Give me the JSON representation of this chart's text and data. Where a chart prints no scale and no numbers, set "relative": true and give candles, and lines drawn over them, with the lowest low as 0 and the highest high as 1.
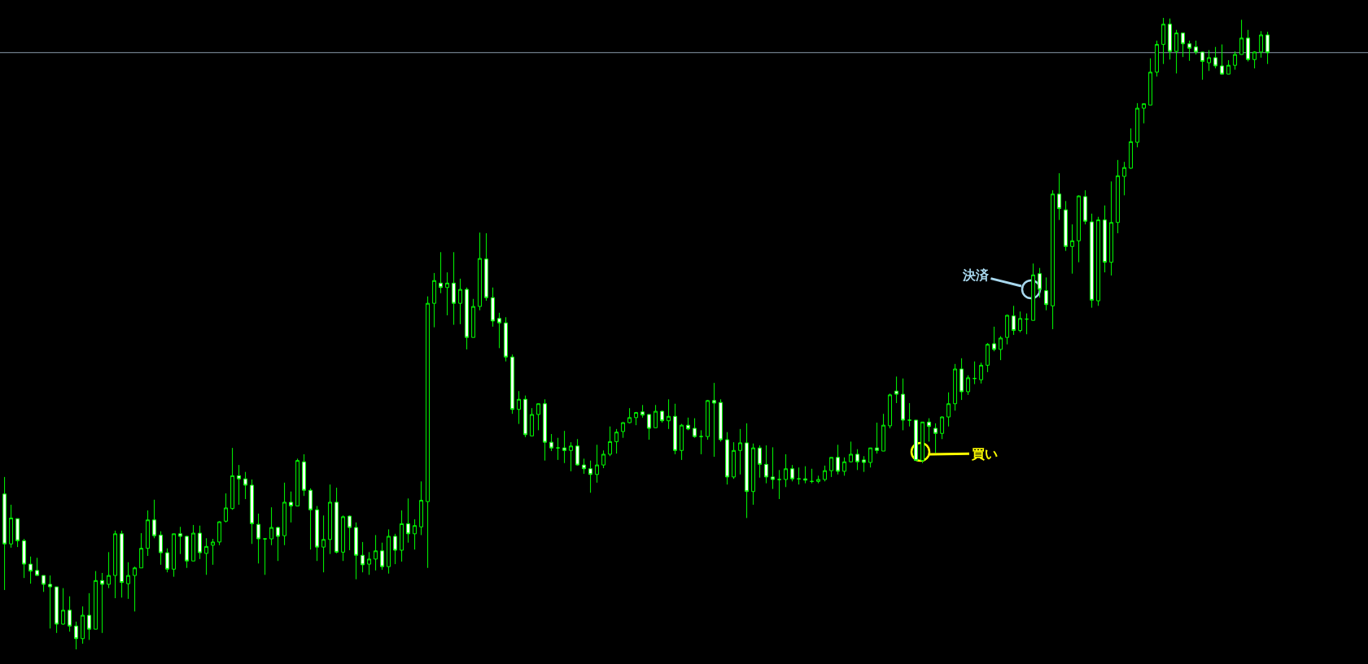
{
  "chart_data": {
    "type": "candlestick",
    "relative": true,
    "color": "#00ff00",
    "categories": [
      null,
      null,
      null,
      null,
      null,
      null,
      null,
      null,
      null,
      null,
      null,
      null,
      null,
      null,
      null,
      null,
      null,
      null,
      null,
      null,
      null,
      null,
      null,
      null,
      null,
      null,
      null,
      null,
      null,
      null,
      null,
      null,
      null,
      null,
      null,
      null,
      null,
      null,
      null,
      null,
      null,
      null,
      null,
      null,
      null,
      null,
      null,
      null,
      null,
      null,
      null,
      null,
      null,
      null,
      null,
      null,
      null,
      null,
      null,
      null,
      null,
      null,
      null,
      null,
      null,
      null,
      null,
      null,
      null,
      null,
      null,
      null,
      null,
      null,
      null,
      null,
      null,
      null,
      null,
      null,
      null,
      null,
      null,
      null,
      null,
      null,
      null,
      null,
      null,
      null,
      null,
      null,
      null,
      null,
      null,
      null,
      null,
      null,
      null,
      null,
      null,
      null,
      null,
      null,
      null,
      null,
      null,
      null,
      null,
      null,
      null,
      null,
      null,
      null,
      null,
      null,
      null,
      null,
      null,
      null,
      null,
      null,
      null,
      null,
      null,
      null,
      null,
      null,
      null,
      null,
      null,
      null,
      null,
      null,
      null,
      null,
      null,
      null,
      null,
      null,
      null,
      null,
      null,
      null,
      null,
      null,
      null,
      null,
      null,
      null,
      null,
      null,
      null,
      null,
      null,
      null,
      null,
      null,
      null,
      null,
      null,
      null,
      null,
      null,
      null,
      null,
      null,
      null,
      null,
      null,
      null,
      null,
      null,
      null,
      null,
      null,
      null,
      null,
      null,
      null,
      null,
      null,
      null,
      null,
      null,
      null,
      null,
      null,
      null,
      null,
      null,
      null,
      null,
      null,
      null
    ],
    "ohlc": [
      [
        0.246,
        0.273,
        0.094,
        0.167
      ],
      [
        0.167,
        0.229,
        0.161,
        0.208
      ],
      [
        0.207,
        0.207,
        0.162,
        0.172
      ],
      [
        0.172,
        0.175,
        0.113,
        0.135
      ],
      [
        0.135,
        0.147,
        0.104,
        0.124
      ],
      [
        0.125,
        0.145,
        0.117,
        0.117
      ],
      [
        0.117,
        0.117,
        0.091,
        0.103
      ],
      [
        0.103,
        0.117,
        0.033,
        0.099
      ],
      [
        0.099,
        0.099,
        0.026,
        0.04
      ],
      [
        0.04,
        0.097,
        0.039,
        0.062
      ],
      [
        0.062,
        0.084,
        0.028,
        0.037
      ],
      [
        0.037,
        0.044,
        0,
        0.017
      ],
      [
        0.017,
        0.068,
        0.009,
        0.054
      ],
      [
        0.054,
        0.089,
        0.015,
        0.032
      ],
      [
        0.032,
        0.124,
        0.032,
        0.109
      ],
      [
        0.109,
        0.121,
        0.026,
        0.103
      ],
      [
        0.103,
        0.154,
        0.097,
        0.117
      ],
      [
        0.117,
        0.188,
        0.081,
        0.183
      ],
      [
        0.183,
        0.188,
        0.082,
        0.106
      ],
      [
        0.104,
        0.138,
        0.08,
        0.117
      ],
      [
        0.117,
        0.131,
        0.06,
        0.129
      ],
      [
        0.129,
        0.184,
        0.129,
        0.16
      ],
      [
        0.16,
        0.22,
        0.148,
        0.205
      ],
      [
        0.205,
        0.237,
        0.176,
        0.18
      ],
      [
        0.181,
        0.187,
        0.134,
        0.153
      ],
      [
        0.153,
        0.16,
        0.122,
        0.127
      ],
      [
        0.127,
        0.183,
        0.115,
        0.183
      ],
      [
        0.183,
        0.194,
        0.151,
        0.179
      ],
      [
        0.179,
        0.18,
        0.129,
        0.14
      ],
      [
        0.14,
        0.197,
        0.14,
        0.184
      ],
      [
        0.184,
        0.196,
        0.143,
        0.153
      ],
      [
        0.152,
        0.176,
        0.118,
        0.163
      ],
      [
        0.165,
        0.175,
        0.134,
        0.17
      ],
      [
        0.17,
        0.203,
        0.165,
        0.202
      ],
      [
        0.203,
        0.247,
        0.201,
        0.224
      ],
      [
        0.223,
        0.319,
        0.221,
        0.275
      ],
      [
        0.275,
        0.292,
        0.229,
        0.27
      ],
      [
        0.27,
        0.281,
        0.238,
        0.26
      ],
      [
        0.26,
        0.269,
        0.167,
        0.199
      ],
      [
        0.198,
        0.215,
        0.136,
        0.175
      ],
      [
        0.175,
        0.175,
        0.118,
        0.175
      ],
      [
        0.175,
        0.225,
        0.165,
        0.193
      ],
      [
        0.193,
        0.194,
        0.14,
        0.179
      ],
      [
        0.18,
        0.264,
        0.165,
        0.233
      ],
      [
        0.233,
        0.25,
        0.201,
        0.227
      ],
      [
        0.227,
        0.302,
        0.227,
        0.299
      ],
      [
        0.297,
        0.309,
        0.243,
        0.252
      ],
      [
        0.252,
        0.255,
        0.158,
        0.221
      ],
      [
        0.221,
        0.227,
        0.14,
        0.162
      ],
      [
        0.162,
        0.212,
        0.122,
        0.174
      ],
      [
        0.174,
        0.261,
        0.151,
        0.233
      ],
      [
        0.233,
        0.256,
        0.152,
        0.154
      ],
      [
        0.154,
        0.212,
        0.14,
        0.21
      ],
      [
        0.211,
        0.212,
        0.157,
        0.193
      ],
      [
        0.193,
        0.201,
        0.111,
        0.149
      ],
      [
        0.149,
        0.17,
        0.122,
        0.134
      ],
      [
        0.135,
        0.154,
        0.118,
        0.143
      ],
      [
        0.143,
        0.181,
        0.125,
        0.156
      ],
      [
        0.156,
        0.169,
        0.126,
        0.131
      ],
      [
        0.131,
        0.19,
        0.12,
        0.179
      ],
      [
        0.179,
        0.183,
        0.135,
        0.157
      ],
      [
        0.157,
        0.22,
        0.139,
        0.199
      ],
      [
        0.199,
        0.239,
        0.169,
        0.183
      ],
      [
        0.183,
        0.206,
        0.158,
        0.196
      ],
      [
        0.194,
        0.266,
        0.181,
        0.236
      ],
      [
        0.234,
        0.559,
        0.129,
        0.548
      ],
      [
        0.548,
        0.596,
        0.51,
        0.584
      ],
      [
        0.58,
        0.629,
        0.564,
        0.573
      ],
      [
        0.573,
        0.597,
        0.529,
        0.58
      ],
      [
        0.58,
        0.629,
        0.514,
        0.548
      ],
      [
        0.548,
        0.587,
        0.515,
        0.57
      ],
      [
        0.57,
        0.573,
        0.475,
        0.494
      ],
      [
        0.494,
        0.555,
        0.494,
        0.543
      ],
      [
        0.543,
        0.66,
        0.537,
        0.619
      ],
      [
        0.618,
        0.659,
        0.552,
        0.557
      ],
      [
        0.557,
        0.573,
        0.511,
        0.52
      ],
      [
        0.524,
        0.533,
        0.477,
        0.517
      ],
      [
        0.517,
        0.526,
        0.456,
        0.463
      ],
      [
        0.463,
        0.467,
        0.373,
        0.38
      ],
      [
        0.38,
        0.409,
        0.357,
        0.396
      ],
      [
        0.396,
        0.402,
        0.336,
        0.34
      ],
      [
        0.338,
        0.382,
        0.338,
        0.372
      ],
      [
        0.372,
        0.389,
        0.347,
        0.389
      ],
      [
        0.389,
        0.396,
        0.299,
        0.328
      ],
      [
        0.328,
        0.341,
        0.314,
        0.319
      ],
      [
        0.319,
        0.335,
        0.3,
        0.319
      ],
      [
        0.319,
        0.346,
        0.295,
        0.315
      ],
      [
        0.315,
        0.328,
        0.282,
        0.322
      ],
      [
        0.322,
        0.333,
        0.291,
        0.292
      ],
      [
        0.292,
        0.302,
        0.278,
        0.286
      ],
      [
        0.286,
        0.299,
        0.248,
        0.277
      ],
      [
        0.277,
        0.324,
        0.264,
        0.292
      ],
      [
        0.292,
        0.315,
        0.287,
        0.309
      ],
      [
        0.309,
        0.353,
        0.306,
        0.329
      ],
      [
        0.329,
        0.349,
        0.31,
        0.344
      ],
      [
        0.345,
        0.36,
        0.335,
        0.359
      ],
      [
        0.359,
        0.382,
        0.358,
        0.367
      ],
      [
        0.367,
        0.376,
        0.355,
        0.375
      ],
      [
        0.376,
        0.387,
        0.367,
        0.371
      ],
      [
        0.372,
        0.372,
        0.332,
        0.35
      ],
      [
        0.351,
        0.387,
        0.351,
        0.377
      ],
      [
        0.377,
        0.378,
        0.359,
        0.362
      ],
      [
        0.362,
        0.396,
        0.349,
        0.369
      ],
      [
        0.369,
        0.389,
        0.309,
        0.315
      ],
      [
        0.315,
        0.357,
        0.3,
        0.355
      ],
      [
        0.355,
        0.367,
        0.347,
        0.349
      ],
      [
        0.35,
        0.366,
        0.335,
        0.337
      ],
      [
        0.337,
        0.347,
        0.309,
        0.337
      ],
      [
        0.337,
        0.395,
        0.332,
        0.394
      ],
      [
        0.394,
        0.422,
        0.305,
        0.39
      ],
      [
        0.391,
        0.396,
        0.329,
        0.332
      ],
      [
        0.332,
        0.344,
        0.261,
        0.273
      ],
      [
        0.273,
        0.328,
        0.27,
        0.315
      ],
      [
        0.315,
        0.349,
        0.277,
        0.327
      ],
      [
        0.327,
        0.358,
        0.208,
        0.25
      ],
      [
        0.25,
        0.326,
        0.229,
        0.319
      ],
      [
        0.319,
        0.323,
        0.272,
        0.293
      ],
      [
        0.293,
        0.323,
        0.263,
        0.273
      ],
      [
        0.273,
        0.32,
        0.254,
        0.269
      ],
      [
        0.269,
        0.284,
        0.238,
        0.269
      ],
      [
        0.269,
        0.309,
        0.257,
        0.286
      ],
      [
        0.286,
        0.292,
        0.266,
        0.27
      ],
      [
        0.27,
        0.288,
        0.261,
        0.27
      ],
      [
        0.27,
        0.29,
        0.263,
        0.268
      ],
      [
        0.266,
        0.286,
        0.263,
        0.266
      ],
      [
        0.266,
        0.275,
        0.263,
        0.269
      ],
      [
        0.269,
        0.291,
        0.266,
        0.283
      ],
      [
        0.283,
        0.304,
        0.273,
        0.304
      ],
      [
        0.304,
        0.324,
        0.277,
        0.282
      ],
      [
        0.282,
        0.304,
        0.275,
        0.297
      ],
      [
        0.297,
        0.329,
        0.296,
        0.309
      ],
      [
        0.309,
        0.317,
        0.284,
        0.297
      ],
      [
        0.3,
        0.306,
        0.281,
        0.296
      ],
      [
        0.296,
        0.319,
        0.288,
        0.319
      ],
      [
        0.319,
        0.359,
        0.31,
        0.315
      ],
      [
        0.314,
        0.373,
        0.314,
        0.355
      ],
      [
        0.354,
        0.405,
        0.35,
        0.403
      ],
      [
        0.409,
        0.432,
        0.39,
        0.404
      ],
      [
        0.404,
        0.429,
        0.347,
        0.363
      ],
      [
        0.363,
        0.39,
        0.353,
        0.363
      ],
      [
        0.363,
        0.363,
        0.299,
        0.299
      ],
      [
        0.299,
        0.36,
        0.295,
        0.36
      ],
      [
        0.36,
        0.366,
        0.329,
        0.353
      ],
      [
        0.35,
        0.358,
        0.311,
        0.342
      ],
      [
        0.342,
        0.369,
        0.333,
        0.368
      ],
      [
        0.368,
        0.407,
        0.353,
        0.389
      ],
      [
        0.389,
        0.452,
        0.378,
        0.444
      ],
      [
        0.444,
        0.461,
        0.395,
        0.408
      ],
      [
        0.408,
        0.434,
        0.403,
        0.43
      ],
      [
        0.429,
        0.456,
        0.42,
        0.429
      ],
      [
        0.427,
        0.454,
        0.421,
        0.45
      ],
      [
        0.45,
        0.485,
        0.439,
        0.483
      ],
      [
        0.484,
        0.511,
        0.472,
        0.475
      ],
      [
        0.475,
        0.496,
        0.458,
        0.493
      ],
      [
        0.494,
        0.53,
        0.483,
        0.529
      ],
      [
        0.528,
        0.544,
        0.498,
        0.505
      ],
      [
        0.505,
        0.535,
        0.502,
        0.524
      ],
      [
        0.523,
        0.532,
        0.499,
        0.523
      ],
      [
        0.521,
        0.611,
        0.521,
        0.593
      ],
      [
        0.595,
        0.604,
        0.557,
        0.57
      ],
      [
        0.568,
        0.589,
        0.537,
        0.546
      ],
      [
        0.544,
        0.727,
        0.507,
        0.721
      ],
      [
        0.721,
        0.754,
        0.68,
        0.698
      ],
      [
        0.696,
        0.71,
        0.631,
        0.638
      ],
      [
        0.638,
        0.673,
        0.595,
        0.647
      ],
      [
        0.647,
        0.719,
        0.613,
        0.718
      ],
      [
        0.717,
        0.727,
        0.673,
        0.678
      ],
      [
        0.677,
        0.69,
        0.541,
        0.553
      ],
      [
        0.552,
        0.685,
        0.544,
        0.68
      ],
      [
        0.68,
        0.703,
        0.597,
        0.613
      ],
      [
        0.613,
        0.741,
        0.592,
        0.676
      ],
      [
        0.676,
        0.775,
        0.659,
        0.75
      ],
      [
        0.749,
        0.772,
        0.719,
        0.763
      ],
      [
        0.762,
        0.825,
        0.761,
        0.804
      ],
      [
        0.803,
        0.865,
        0.795,
        0.857
      ],
      [
        0.857,
        0.864,
        0.833,
        0.864
      ],
      [
        0.862,
        0.936,
        0.862,
        0.914
      ],
      [
        0.914,
        0.964,
        0.907,
        0.958
      ],
      [
        0.958,
        1,
        0.927,
        0.99
      ],
      [
        0.99,
        0.999,
        0.934,
        0.947
      ],
      [
        0.947,
        0.981,
        0.912,
        0.976
      ],
      [
        0.976,
        0.976,
        0.938,
        0.959
      ],
      [
        0.959,
        0.964,
        0.932,
        0.952
      ],
      [
        0.954,
        0.964,
        0.942,
        0.946
      ],
      [
        0.946,
        0.946,
        0.902,
        0.931
      ],
      [
        0.929,
        0.949,
        0.916,
        0.937
      ],
      [
        0.937,
        0.954,
        0.92,
        0.924
      ],
      [
        0.924,
        0.958,
        0.911,
        0.911
      ],
      [
        0.911,
        0.933,
        0.911,
        0.925
      ],
      [
        0.925,
        0.947,
        0.918,
        0.942
      ],
      [
        0.942,
        0.997,
        0.942,
        0.968
      ],
      [
        0.968,
        0.981,
        0.931,
        0.934
      ],
      [
        0.934,
        0.947,
        0.92,
        0.946
      ],
      [
        0.946,
        0.979,
        0.937,
        0.973
      ],
      [
        0.973,
        0.978,
        0.927,
        0.945
      ]
    ],
    "ref_lines": [
      {
        "axis": "y",
        "value": 0.945,
        "color": "#8a9aaa"
      }
    ],
    "annotations": [
      "決済",
      "買い"
    ]
  }
}
